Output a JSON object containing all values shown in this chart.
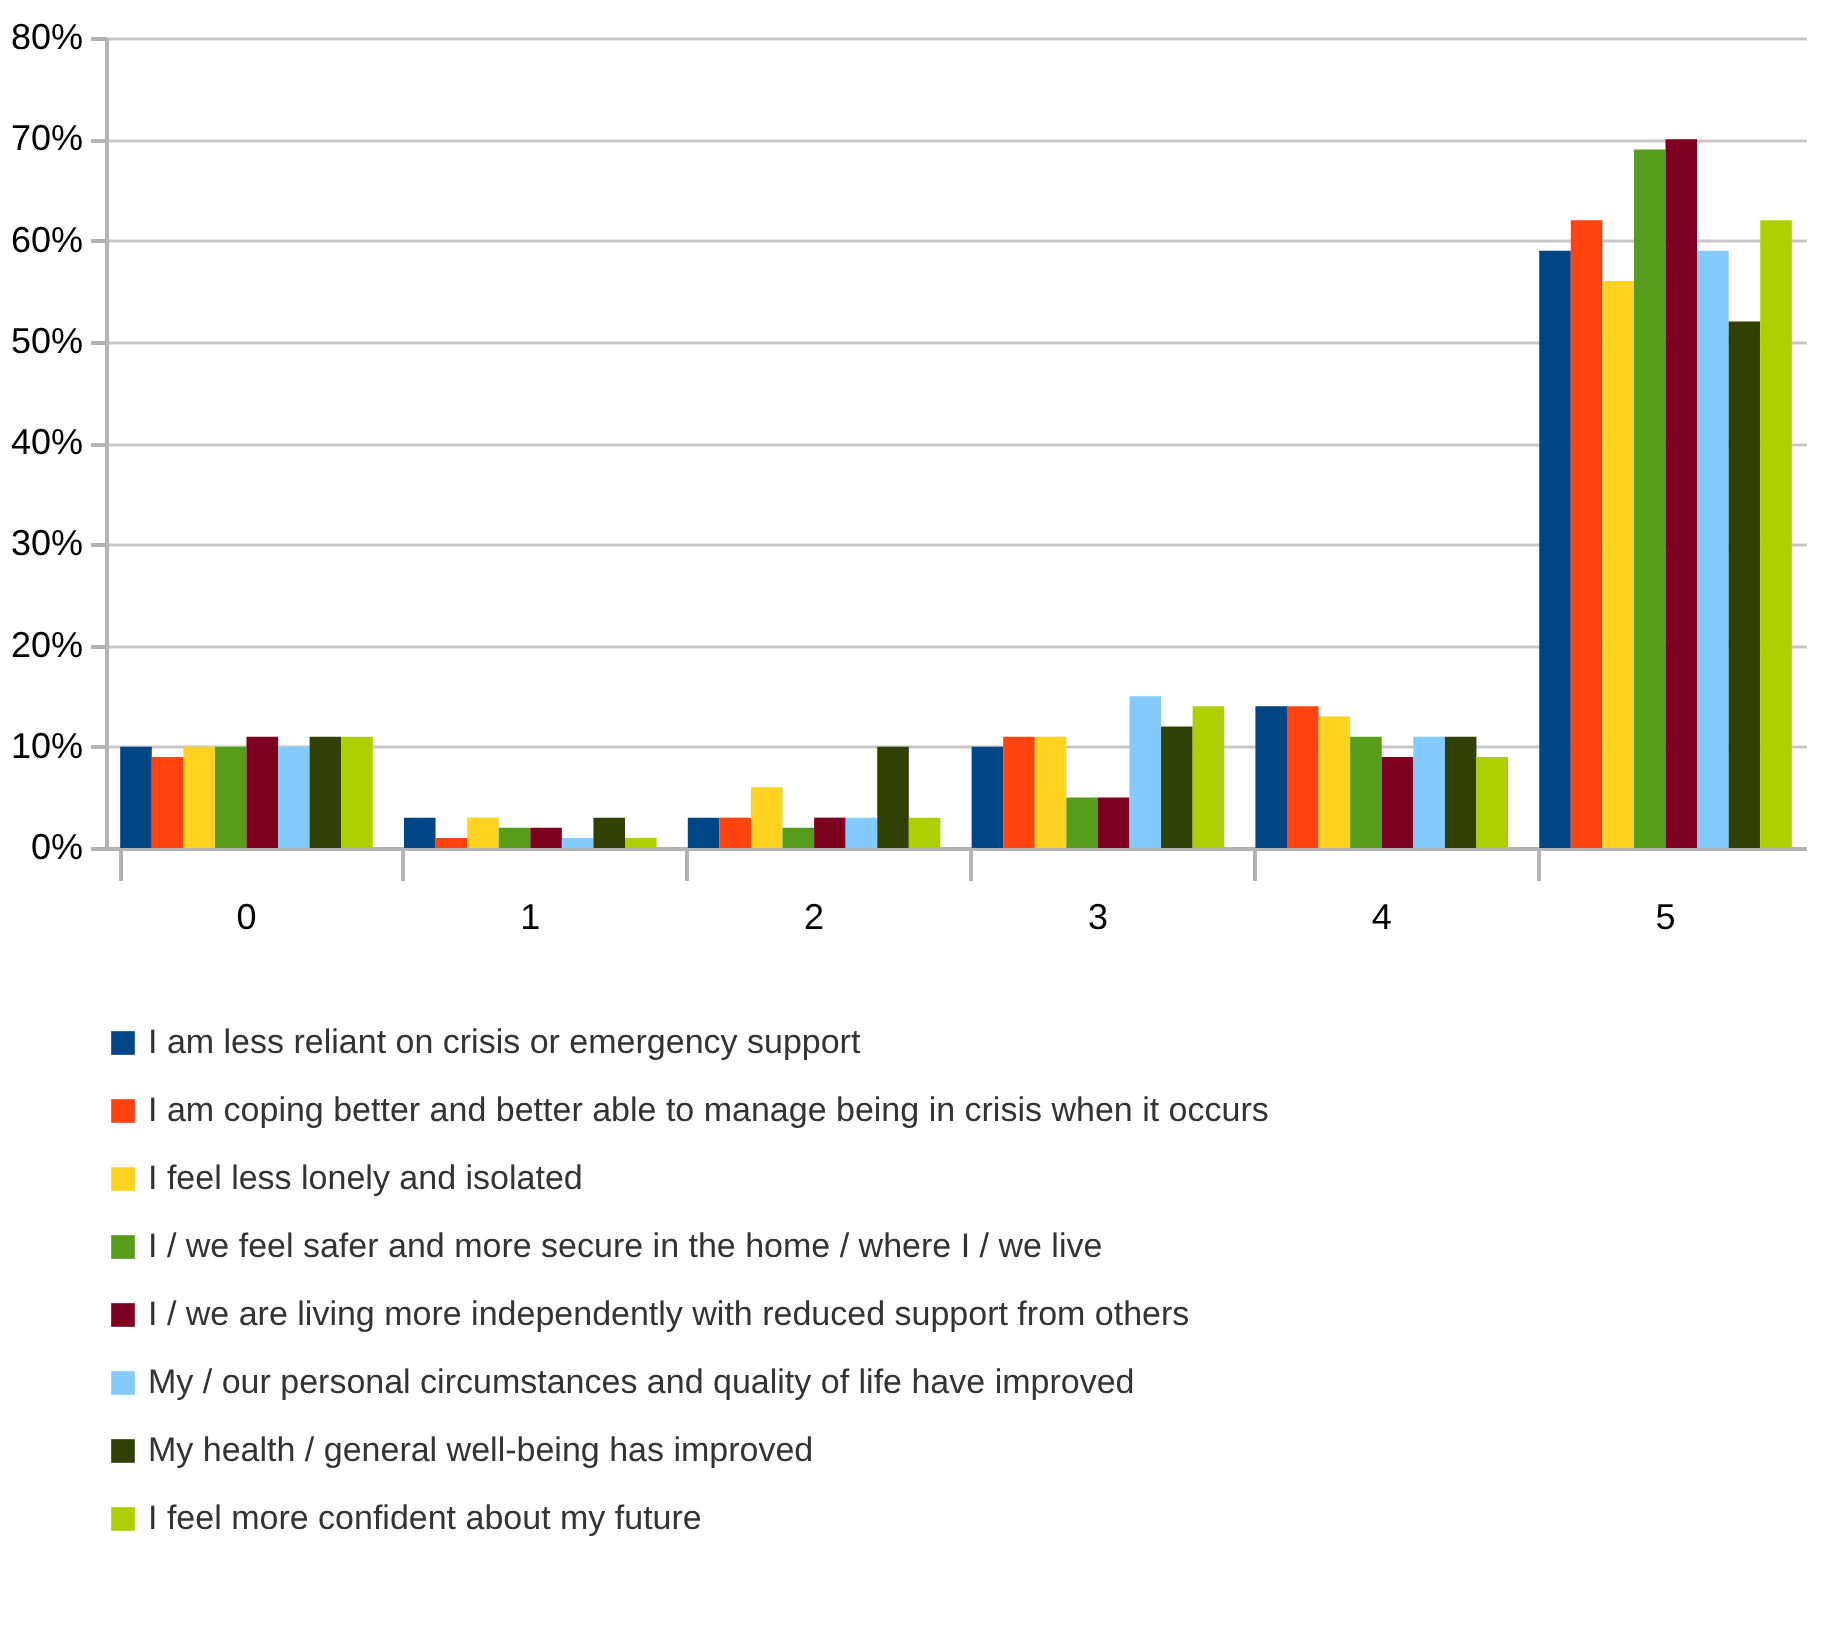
{
  "chart_data": {
    "type": "bar",
    "categories": [
      "0",
      "1",
      "2",
      "3",
      "4",
      "5"
    ],
    "series": [
      {
        "name": "I am less reliant on crisis or emergency support",
        "color": "#004586",
        "values": [
          10,
          3,
          3,
          10,
          14,
          59
        ]
      },
      {
        "name": "I am coping better and better able to manage being in crisis when it occurs",
        "color": "#ff420e",
        "values": [
          9,
          1,
          3,
          11,
          14,
          62
        ]
      },
      {
        "name": "I feel less lonely and isolated",
        "color": "#ffd320",
        "values": [
          10,
          3,
          6,
          11,
          13,
          56
        ]
      },
      {
        "name": "I / we feel safer and more secure in the home / where I / we live",
        "color": "#579d1c",
        "values": [
          10,
          2,
          2,
          5,
          11,
          69
        ]
      },
      {
        "name": "I / we are living more independently with reduced support from others",
        "color": "#7e0021",
        "values": [
          11,
          2,
          3,
          5,
          9,
          70
        ]
      },
      {
        "name": "My / our personal circumstances and quality of life have improved",
        "color": "#83caff",
        "values": [
          10,
          1,
          3,
          15,
          11,
          59
        ]
      },
      {
        "name": "My health / general well-being has improved",
        "color": "#314004",
        "values": [
          11,
          3,
          10,
          12,
          11,
          52
        ]
      },
      {
        "name": "I feel more confident about my future",
        "color": "#aecf00",
        "values": [
          11,
          1,
          3,
          14,
          9,
          62
        ]
      }
    ],
    "ylim": [
      0,
      80
    ],
    "yticks": [
      {
        "value": 0,
        "label": "0%"
      },
      {
        "value": 10,
        "label": "10%"
      },
      {
        "value": 20,
        "label": "20%"
      },
      {
        "value": 30,
        "label": "30%"
      },
      {
        "value": 40,
        "label": "40%"
      },
      {
        "value": 50,
        "label": "50%"
      },
      {
        "value": 60,
        "label": "60%"
      },
      {
        "value": 70,
        "label": "70%"
      },
      {
        "value": 80,
        "label": "80%"
      }
    ],
    "grid": "y",
    "legend": "bottom"
  }
}
